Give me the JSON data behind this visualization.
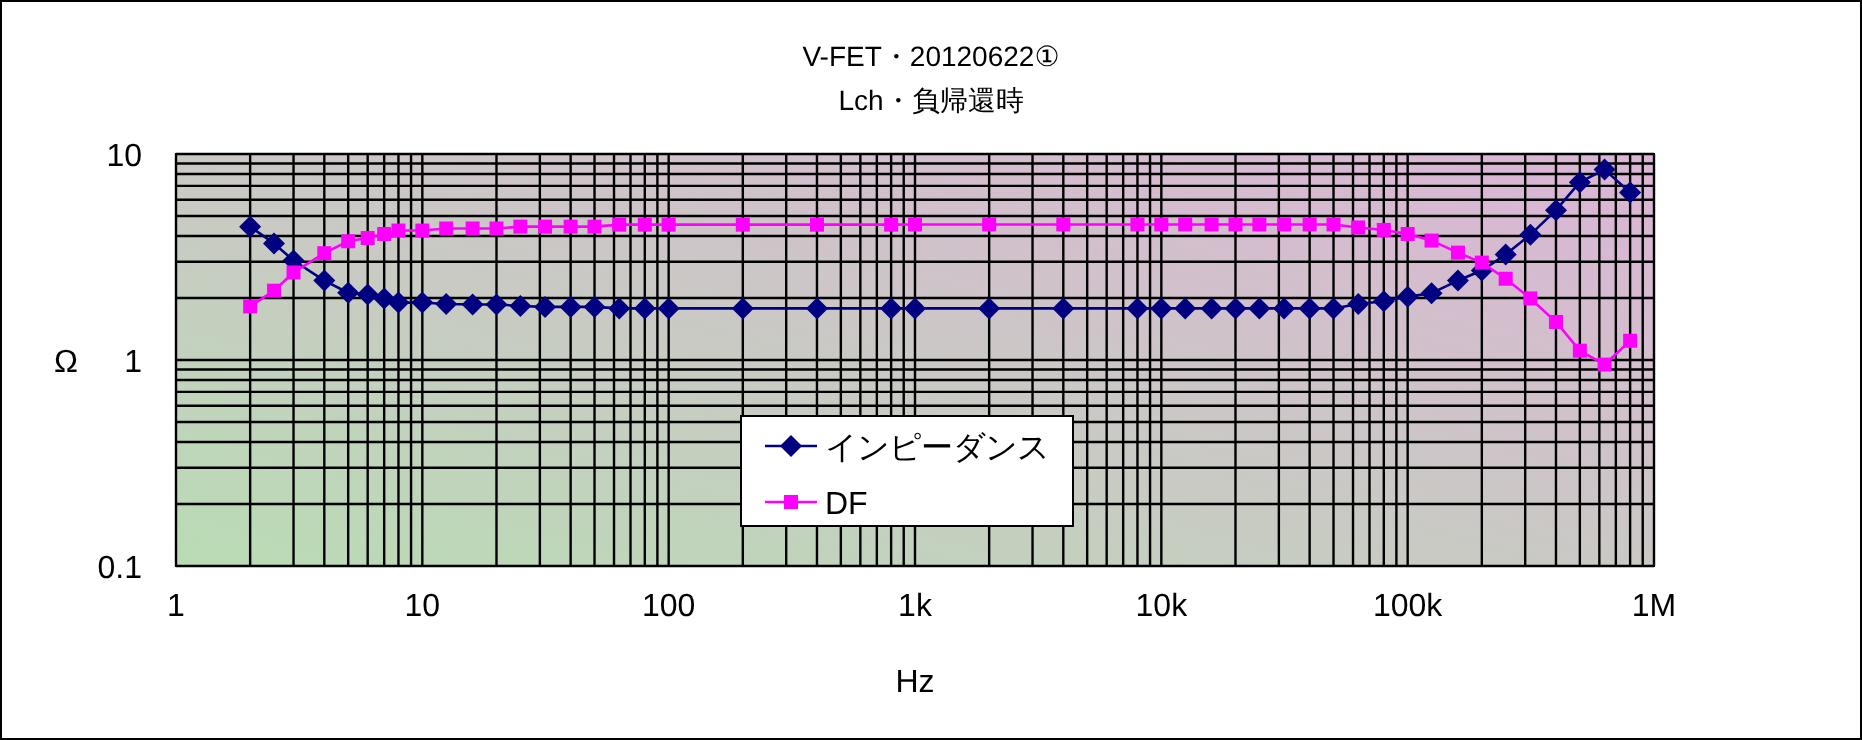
{
  "chart_data": {
    "type": "line",
    "title": "V-FET・20120622①",
    "subtitle": "Lch・負帰還時",
    "xlabel": "Hz",
    "ylabel": "Ω",
    "log": "xy",
    "grid": true,
    "legend": "bottom",
    "xlim": [
      1,
      1000000
    ],
    "xticks": [
      1,
      10,
      100,
      {
        "value": 1000,
        "label": "1k"
      },
      {
        "value": 10000,
        "label": "10k"
      },
      {
        "value": 100000,
        "label": "100k"
      },
      {
        "value": 1000000,
        "label": "1M"
      }
    ],
    "ylim": [
      0.1,
      10
    ],
    "yticks": [
      0.1,
      1,
      10
    ],
    "x": [
      2,
      2.5,
      3,
      4,
      5,
      6,
      7,
      8,
      10,
      12.5,
      16,
      20,
      25,
      31.5,
      40,
      50,
      63,
      80,
      100,
      200,
      400,
      800,
      1000,
      2000,
      4000,
      8000,
      10000,
      12500,
      16000,
      20000,
      25000,
      31500,
      40000,
      50000,
      63000,
      80000,
      100000,
      125000,
      160000,
      200000,
      250000,
      315000,
      400000,
      500000,
      630000,
      800000
    ],
    "series": [
      {
        "name": "インピーダンス",
        "color": "#000080",
        "marker": "diamond",
        "values": [
          4.44,
          3.68,
          3.04,
          2.43,
          2.12,
          2.08,
          1.99,
          1.9,
          1.9,
          1.87,
          1.86,
          1.86,
          1.83,
          1.81,
          1.81,
          1.81,
          1.78,
          1.78,
          1.78,
          1.78,
          1.78,
          1.78,
          1.78,
          1.78,
          1.78,
          1.78,
          1.78,
          1.78,
          1.78,
          1.78,
          1.78,
          1.78,
          1.78,
          1.78,
          1.87,
          1.93,
          2.03,
          2.11,
          2.43,
          2.72,
          3.25,
          4.06,
          5.34,
          7.3,
          8.4,
          6.5
        ]
      },
      {
        "name": "DF",
        "color": "#ff00ff",
        "marker": "square",
        "values": [
          1.82,
          2.17,
          2.66,
          3.3,
          3.77,
          3.91,
          4.09,
          4.25,
          4.25,
          4.35,
          4.35,
          4.35,
          4.44,
          4.44,
          4.44,
          4.44,
          4.54,
          4.54,
          4.54,
          4.54,
          4.54,
          4.54,
          4.55,
          4.55,
          4.55,
          4.55,
          4.55,
          4.55,
          4.55,
          4.55,
          4.55,
          4.55,
          4.55,
          4.55,
          4.4,
          4.28,
          4.09,
          3.8,
          3.32,
          2.97,
          2.48,
          1.99,
          1.53,
          1.11,
          0.95,
          1.24
        ]
      }
    ]
  }
}
